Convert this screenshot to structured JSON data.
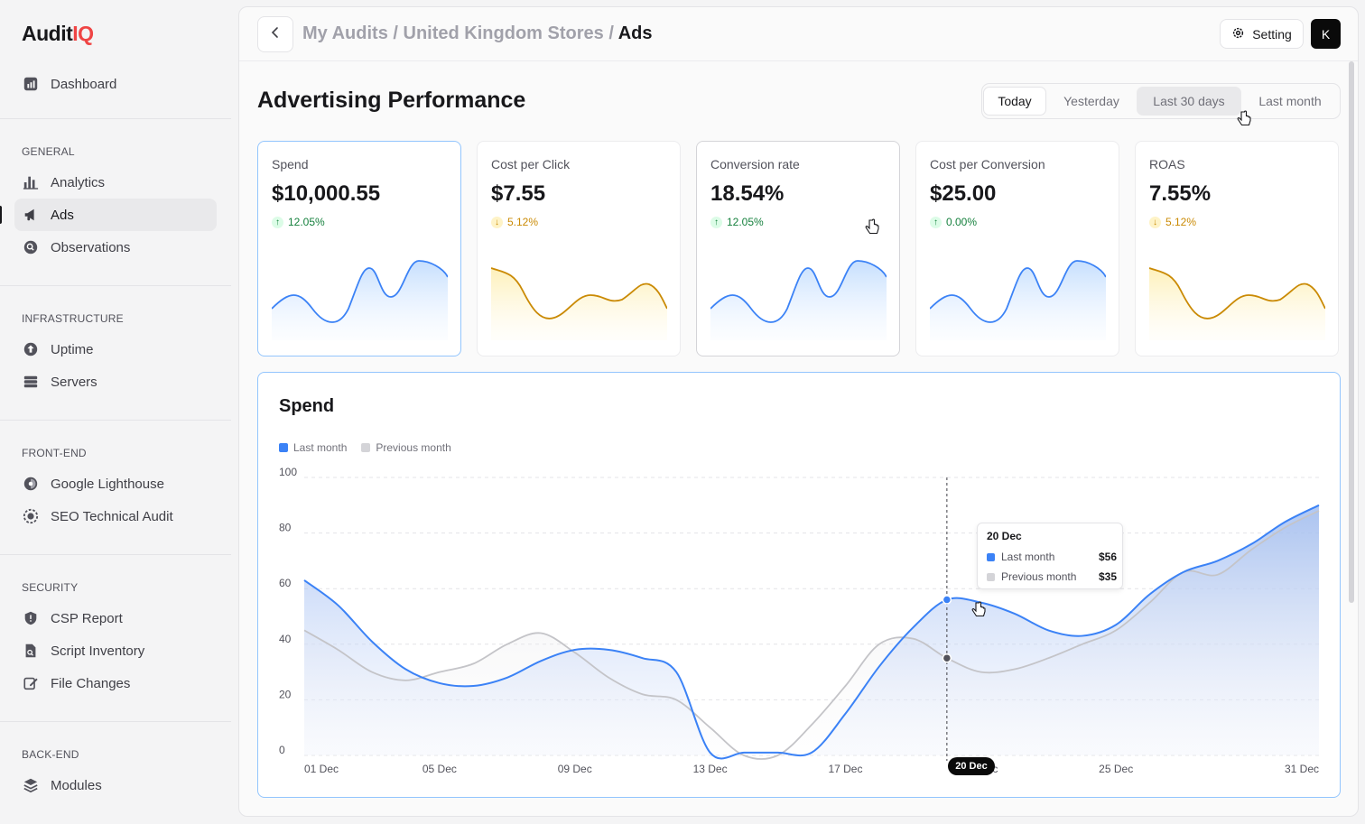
{
  "app": {
    "logo_main": "Audit",
    "logo_accent": "IQ"
  },
  "sidebar": {
    "dashboard": "Dashboard",
    "sections": [
      {
        "label": "GENERAL",
        "items": [
          "Analytics",
          "Ads",
          "Observations"
        ]
      },
      {
        "label": "INFRASTRUCTURE",
        "items": [
          "Uptime",
          "Servers"
        ]
      },
      {
        "label": "FRONT-END",
        "items": [
          "Google Lighthouse",
          "SEO Technical Audit"
        ]
      },
      {
        "label": "SECURITY",
        "items": [
          "CSP Report",
          "Script Inventory",
          "File Changes"
        ]
      },
      {
        "label": "BACK-END",
        "items": [
          "Modules"
        ]
      }
    ],
    "active_item": "Ads"
  },
  "header": {
    "crumb_1": "My Audits",
    "crumb_2": "United Kingdom Stores",
    "crumb_3": "Ads",
    "sep": "/",
    "setting_label": "Setting",
    "avatar_initial": "K"
  },
  "page": {
    "title": "Advertising Performance",
    "range_tabs": [
      "Today",
      "Yesterday",
      "Last 30 days",
      "Last month"
    ],
    "selected_range": "Today",
    "hovered_range": "Last 30 days"
  },
  "kpis": [
    {
      "label": "Spend",
      "value": "$10,000.55",
      "delta": "12.05%",
      "trend": "up"
    },
    {
      "label": "Cost per Click",
      "value": "$7.55",
      "delta": "5.12%",
      "trend": "down"
    },
    {
      "label": "Conversion rate",
      "value": "18.54%",
      "delta": "12.05%",
      "trend": "up"
    },
    {
      "label": "Cost per Conversion",
      "value": "$25.00",
      "delta": "0.00%",
      "trend": "up"
    },
    {
      "label": "ROAS",
      "value": "7.55%",
      "delta": "5.12%",
      "trend": "down"
    }
  ],
  "colors": {
    "accent_blue": "#3b82f6",
    "previous_gray": "#d4d4d8",
    "up_green": "#15803d",
    "down_amber": "#ca8a04"
  },
  "chart_data": {
    "type": "area",
    "title": "Spend",
    "x": [
      "01 Dec",
      "02 Dec",
      "03 Dec",
      "04 Dec",
      "05 Dec",
      "06 Dec",
      "07 Dec",
      "08 Dec",
      "09 Dec",
      "10 Dec",
      "11 Dec",
      "12 Dec",
      "13 Dec",
      "14 Dec",
      "15 Dec",
      "16 Dec",
      "17 Dec",
      "18 Dec",
      "19 Dec",
      "20 Dec",
      "21 Dec",
      "22 Dec",
      "23 Dec",
      "24 Dec",
      "25 Dec",
      "26 Dec",
      "27 Dec",
      "28 Dec",
      "29 Dec",
      "30 Dec",
      "31 Dec"
    ],
    "xticks": [
      "01 Dec",
      "05 Dec",
      "09 Dec",
      "13 Dec",
      "17 Dec",
      "21 Dec",
      "25 Dec",
      "31 Dec"
    ],
    "yticks": [
      0,
      20,
      40,
      60,
      80,
      100
    ],
    "ylim": [
      0,
      100
    ],
    "series": [
      {
        "name": "Last month",
        "values": [
          63,
          54,
          41,
          31,
          26,
          25,
          28,
          34,
          38,
          38,
          35,
          30,
          1,
          1,
          1,
          1,
          15,
          32,
          46,
          56,
          55,
          51,
          45,
          43,
          47,
          58,
          66,
          70,
          76,
          84,
          90
        ]
      },
      {
        "name": "Previous month",
        "values": [
          45,
          38,
          30,
          27,
          30,
          33,
          40,
          44,
          37,
          28,
          22,
          20,
          10,
          0,
          0,
          11,
          25,
          40,
          42,
          35,
          30,
          31,
          35,
          40,
          45,
          55,
          66,
          65,
          74,
          82,
          88
        ]
      }
    ],
    "grid": true,
    "legend": "top-left",
    "tooltip": {
      "date": "20 Dec",
      "rows": [
        {
          "name": "Last month",
          "value": "$56"
        },
        {
          "name": "Previous month",
          "value": "$35"
        }
      ]
    },
    "highlight_label": "20 Dec"
  }
}
